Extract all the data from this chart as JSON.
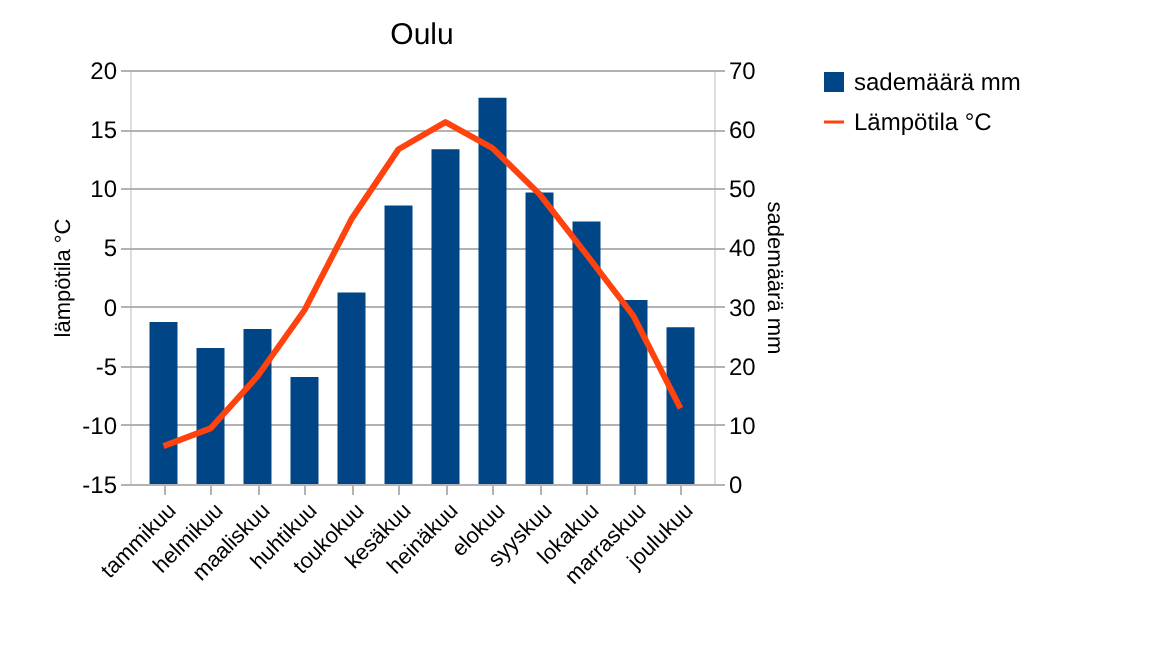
{
  "chart_data": {
    "type": "bar",
    "title": "Oulu",
    "ylabel": "lämpötila °C",
    "y2label": "sademäärä mm",
    "categories": [
      "tammikuu",
      "helmikuu",
      "maaliskuu",
      "huhtikuu",
      "toukokuu",
      "kesäkuu",
      "heinäkuu",
      "elokuu",
      "syyskuu",
      "lokakuu",
      "marraskuu",
      "joulukuu"
    ],
    "series": [
      {
        "name": "sademäärä mm",
        "axis": "y2",
        "color": "#004586",
        "values": [
          27.4,
          23,
          26.2,
          18.1,
          32.4,
          47.1,
          56.6,
          65.3,
          49.3,
          44.4,
          31.1,
          26.5
        ]
      },
      {
        "name": "Lämpötila °C",
        "type": "line",
        "axis": "y",
        "color": "#ff420e",
        "values": [
          -11.8,
          -10.3,
          -5.9,
          -0.3,
          7.4,
          13.3,
          15.6,
          13.4,
          9.5,
          4.4,
          -0.8,
          -8.6
        ]
      }
    ],
    "ylim": [
      -15,
      20
    ],
    "yticks": [
      -15,
      -10,
      -5,
      0,
      5,
      10,
      15,
      20
    ],
    "y2lim": [
      0,
      70
    ],
    "y2ticks": [
      0,
      10,
      20,
      30,
      40,
      50,
      60,
      70
    ],
    "grid": "y",
    "legend": "right",
    "marker": "none",
    "line_style": "solid"
  }
}
